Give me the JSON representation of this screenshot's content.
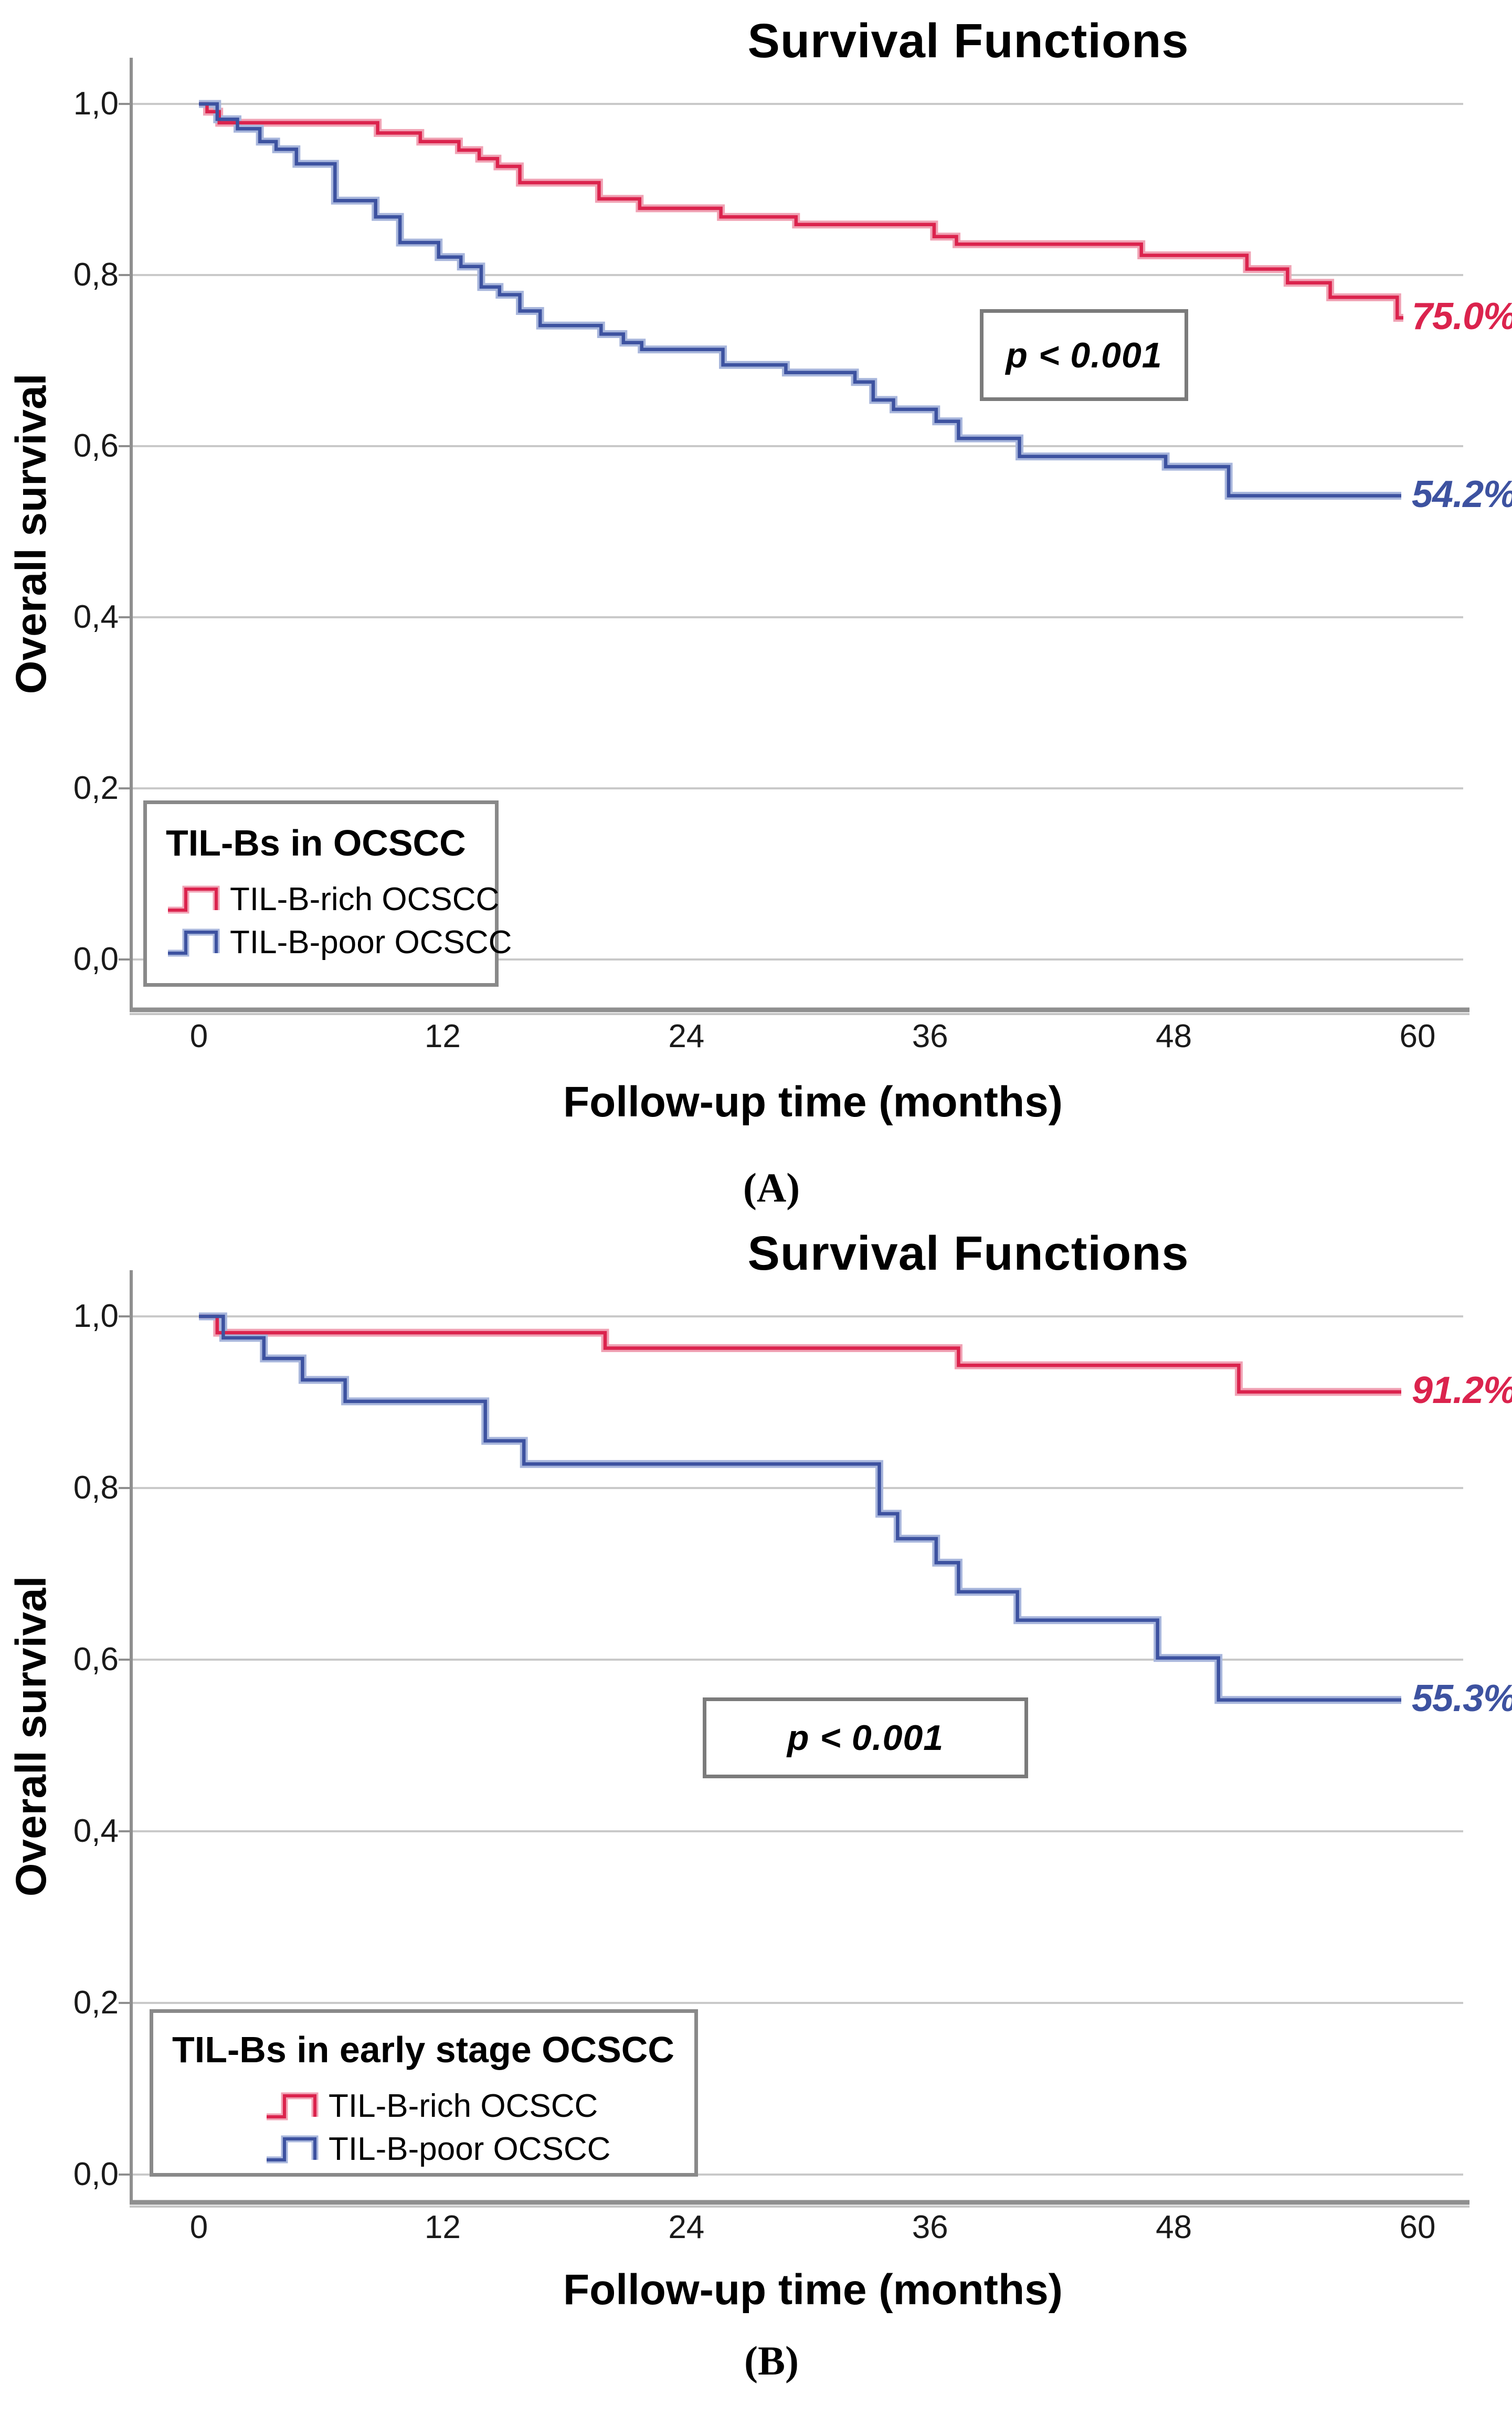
{
  "page": {
    "background": "#ffffff"
  },
  "colors": {
    "til_b_rich": "#db234d",
    "til_b_rich_halo": "#f0a2b4",
    "til_b_poor": "#3d52a0",
    "til_b_poor_halo": "#a8b6dc",
    "gridline": "#c9c9c9",
    "axis_frame": "#8f8f8f",
    "text": "#000000"
  },
  "chart_data": [
    {
      "type": "line",
      "subtype": "kaplan_meier_step",
      "panel": "A",
      "title": "Survival Functions",
      "xlabel": "Follow-up time (months)",
      "ylabel": "Overall survival",
      "caption": "(A)",
      "annotation": "p < 0.001",
      "legend_title": "TIL-Bs in OCSCC",
      "legend_position": "inside-bottom-left",
      "grid": true,
      "xlim": [
        0,
        62.5
      ],
      "ylim": [
        0.0,
        1.05
      ],
      "x_ticks": [
        0,
        12,
        24,
        36,
        48,
        60
      ],
      "x_tick_labels": [
        "0",
        "12",
        "24",
        "36",
        "48",
        "60"
      ],
      "y_ticks": [
        1.0,
        0.8,
        0.6,
        0.4,
        0.2,
        0.0
      ],
      "y_tick_labels": [
        "1,0",
        "0,8",
        "0,6",
        "0,4",
        "0,2",
        "0,0"
      ],
      "series": [
        {
          "name": "TIL-B-rich OCSCC",
          "color": "#db234d",
          "halo": "#f0a2b4",
          "end_label": "75.0%",
          "end_value": 0.75,
          "points": [
            [
              0,
              1.0
            ],
            [
              0.4,
              0.991
            ],
            [
              1.0,
              0.978
            ],
            [
              8.8,
              0.966
            ],
            [
              10.9,
              0.956
            ],
            [
              12.8,
              0.946
            ],
            [
              13.8,
              0.936
            ],
            [
              14.7,
              0.927
            ],
            [
              15.8,
              0.908
            ],
            [
              19.7,
              0.889
            ],
            [
              21.7,
              0.878
            ],
            [
              25.7,
              0.868
            ],
            [
              29.4,
              0.859
            ],
            [
              36.2,
              0.845
            ],
            [
              37.3,
              0.836
            ],
            [
              46.4,
              0.823
            ],
            [
              51.6,
              0.807
            ],
            [
              53.6,
              0.791
            ],
            [
              55.7,
              0.774
            ],
            [
              59.0,
              0.75
            ],
            [
              59.3,
              0.75
            ]
          ]
        },
        {
          "name": "TIL-B-poor OCSCC",
          "color": "#3d52a0",
          "halo": "#a8b6dc",
          "end_label": "54.2%",
          "end_value": 0.542,
          "points": [
            [
              0,
              1.0
            ],
            [
              0.9,
              0.982
            ],
            [
              1.9,
              0.971
            ],
            [
              3.0,
              0.956
            ],
            [
              3.8,
              0.947
            ],
            [
              4.8,
              0.93
            ],
            [
              6.7,
              0.887
            ],
            [
              8.7,
              0.868
            ],
            [
              9.9,
              0.838
            ],
            [
              11.8,
              0.821
            ],
            [
              12.9,
              0.81
            ],
            [
              13.9,
              0.786
            ],
            [
              14.8,
              0.777
            ],
            [
              15.8,
              0.758
            ],
            [
              16.8,
              0.741
            ],
            [
              19.8,
              0.731
            ],
            [
              20.9,
              0.721
            ],
            [
              21.8,
              0.713
            ],
            [
              25.8,
              0.695
            ],
            [
              28.9,
              0.686
            ],
            [
              32.3,
              0.675
            ],
            [
              33.2,
              0.654
            ],
            [
              34.2,
              0.643
            ],
            [
              36.3,
              0.629
            ],
            [
              37.4,
              0.609
            ],
            [
              40.4,
              0.588
            ],
            [
              47.6,
              0.576
            ],
            [
              50.7,
              0.542
            ],
            [
              59.2,
              0.542
            ]
          ]
        }
      ]
    },
    {
      "type": "line",
      "subtype": "kaplan_meier_step",
      "panel": "B",
      "title": "Survival Functions",
      "xlabel": "Follow-up time (months)",
      "ylabel": "Overall survival",
      "caption": "(B)",
      "annotation": "p < 0.001",
      "legend_title": "TIL-Bs in early stage OCSCC",
      "legend_position": "inside-bottom-left",
      "grid": true,
      "xlim": [
        0,
        62.5
      ],
      "ylim": [
        0.0,
        1.05
      ],
      "x_ticks": [
        0,
        12,
        24,
        36,
        48,
        60
      ],
      "x_tick_labels": [
        "0",
        "12",
        "24",
        "36",
        "48",
        "60"
      ],
      "y_ticks": [
        1.0,
        0.8,
        0.6,
        0.4,
        0.2,
        0.0
      ],
      "y_tick_labels": [
        "1,0",
        "0,8",
        "0,6",
        "0,4",
        "0,2",
        "0,0"
      ],
      "series": [
        {
          "name": "TIL-B-rich OCSCC",
          "color": "#db234d",
          "halo": "#f0a2b4",
          "end_label": "91.2%",
          "end_value": 0.912,
          "points": [
            [
              0,
              1.0
            ],
            [
              0.9,
              0.981
            ],
            [
              20.0,
              0.963
            ],
            [
              37.4,
              0.943
            ],
            [
              51.2,
              0.912
            ],
            [
              59.2,
              0.912
            ]
          ]
        },
        {
          "name": "TIL-B-poor OCSCC",
          "color": "#3d52a0",
          "halo": "#a8b6dc",
          "end_label": "55.3%",
          "end_value": 0.553,
          "points": [
            [
              0,
              1.0
            ],
            [
              1.2,
              0.975
            ],
            [
              3.2,
              0.951
            ],
            [
              5.1,
              0.926
            ],
            [
              7.2,
              0.901
            ],
            [
              14.1,
              0.855
            ],
            [
              16.0,
              0.828
            ],
            [
              33.5,
              0.77
            ],
            [
              34.4,
              0.741
            ],
            [
              36.3,
              0.713
            ],
            [
              37.4,
              0.679
            ],
            [
              40.3,
              0.646
            ],
            [
              47.2,
              0.602
            ],
            [
              50.2,
              0.553
            ],
            [
              59.2,
              0.553
            ]
          ]
        }
      ]
    }
  ]
}
